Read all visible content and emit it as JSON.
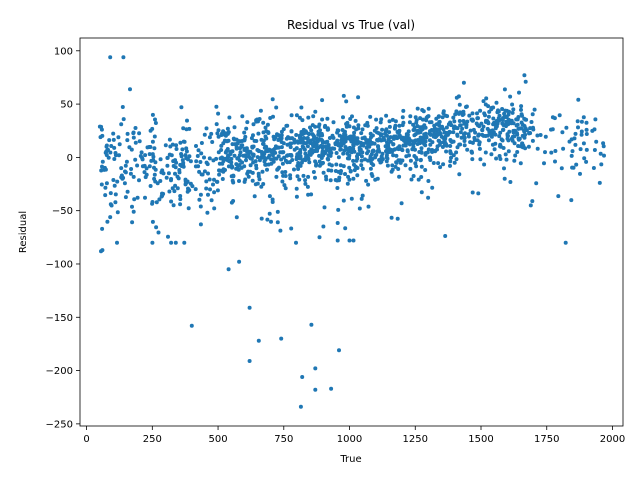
{
  "chart_data": {
    "type": "scatter",
    "title": "Residual vs True (val)",
    "xlabel": "True",
    "ylabel": "Residual",
    "xlim": [
      -25,
      2040
    ],
    "ylim": [
      -252,
      112
    ],
    "xticks": [
      0,
      250,
      500,
      750,
      1000,
      1250,
      1500,
      1750,
      2000
    ],
    "yticks": [
      100,
      50,
      0,
      -50,
      -100,
      -150,
      -200,
      -250
    ],
    "grid": false,
    "legend": "none",
    "point_color": "#1f77b4",
    "point_count": 1600,
    "outliers": [
      [
        90,
        94
      ],
      [
        140,
        94
      ],
      [
        165,
        64
      ],
      [
        55,
        -88
      ],
      [
        60,
        -87
      ],
      [
        400,
        -158
      ],
      [
        540,
        -105
      ],
      [
        580,
        -98
      ],
      [
        620,
        -141
      ],
      [
        620,
        -191
      ],
      [
        655,
        -172
      ],
      [
        740,
        -170
      ],
      [
        820,
        -206
      ],
      [
        815,
        -234
      ],
      [
        855,
        -157
      ],
      [
        870,
        -198
      ],
      [
        870,
        -218
      ],
      [
        930,
        -217
      ],
      [
        960,
        -181
      ],
      [
        1000,
        -78
      ],
      [
        1015,
        -78
      ],
      [
        955,
        -78
      ],
      [
        1665,
        77
      ],
      [
        1670,
        71
      ],
      [
        1435,
        70
      ],
      [
        1870,
        54
      ]
    ],
    "clusters": [
      {
        "x_range": [
          50,
          500
        ],
        "mean": -5,
        "spread": 30,
        "count": 260
      },
      {
        "x_range": [
          500,
          800
        ],
        "mean": 5,
        "spread": 22,
        "count": 300
      },
      {
        "x_range": [
          800,
          1100
        ],
        "mean": 10,
        "spread": 20,
        "count": 380
      },
      {
        "x_range": [
          1100,
          1400
        ],
        "mean": 18,
        "spread": 17,
        "count": 330
      },
      {
        "x_range": [
          1400,
          1700
        ],
        "mean": 25,
        "spread": 18,
        "count": 250
      },
      {
        "x_range": [
          1700,
          1970
        ],
        "mean": 15,
        "spread": 22,
        "count": 60
      }
    ]
  }
}
